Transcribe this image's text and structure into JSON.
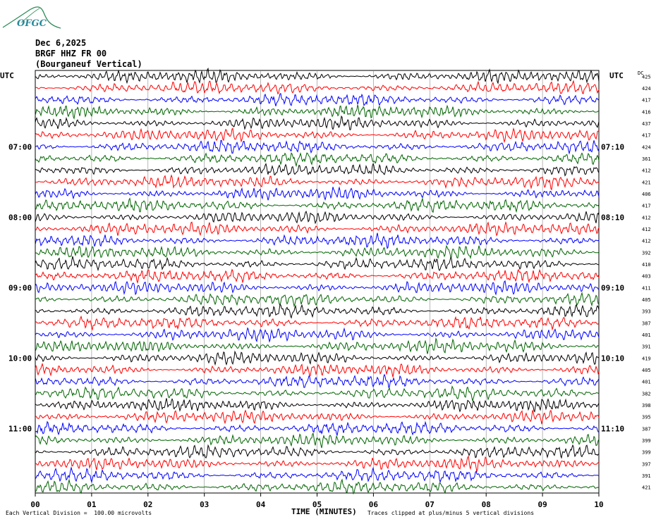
{
  "logo": {
    "text": "OFGC"
  },
  "header": {
    "date": "Dec 6,2025",
    "station": "BRGF HHZ FR 00",
    "location": "(Bourganeuf Vertical)"
  },
  "chart_data": {
    "type": "line",
    "xlabel": "TIME (MINUTES)",
    "x_ticks": [
      "00",
      "01",
      "02",
      "03",
      "04",
      "05",
      "06",
      "07",
      "08",
      "09",
      "10"
    ],
    "xlim": [
      0,
      10
    ],
    "left_axis_label": "UTC",
    "right_axis_label": "UTC",
    "dc_label": "DC",
    "left_time_labels": [
      "07:00",
      "08:00",
      "09:00",
      "10:00",
      "11:00"
    ],
    "right_time_labels": [
      "07:10",
      "08:10",
      "09:10",
      "10:10",
      "11:10"
    ],
    "trace_colors": [
      "#000000",
      "#ff0000",
      "#0000ff",
      "#006400"
    ],
    "dc_offsets": [
      425,
      424,
      417,
      416,
      437,
      417,
      424,
      361,
      412,
      421,
      406,
      417,
      412,
      412,
      412,
      392,
      410,
      403,
      411,
      405,
      393,
      387,
      401,
      391,
      419,
      405,
      401,
      382,
      398,
      395,
      387,
      399,
      399,
      397,
      391,
      421
    ],
    "footer_left": "Each Vertical Division =  100.00 microvolts",
    "footer_right": "Traces clipped at plus/minus 5 vertical divisions"
  }
}
